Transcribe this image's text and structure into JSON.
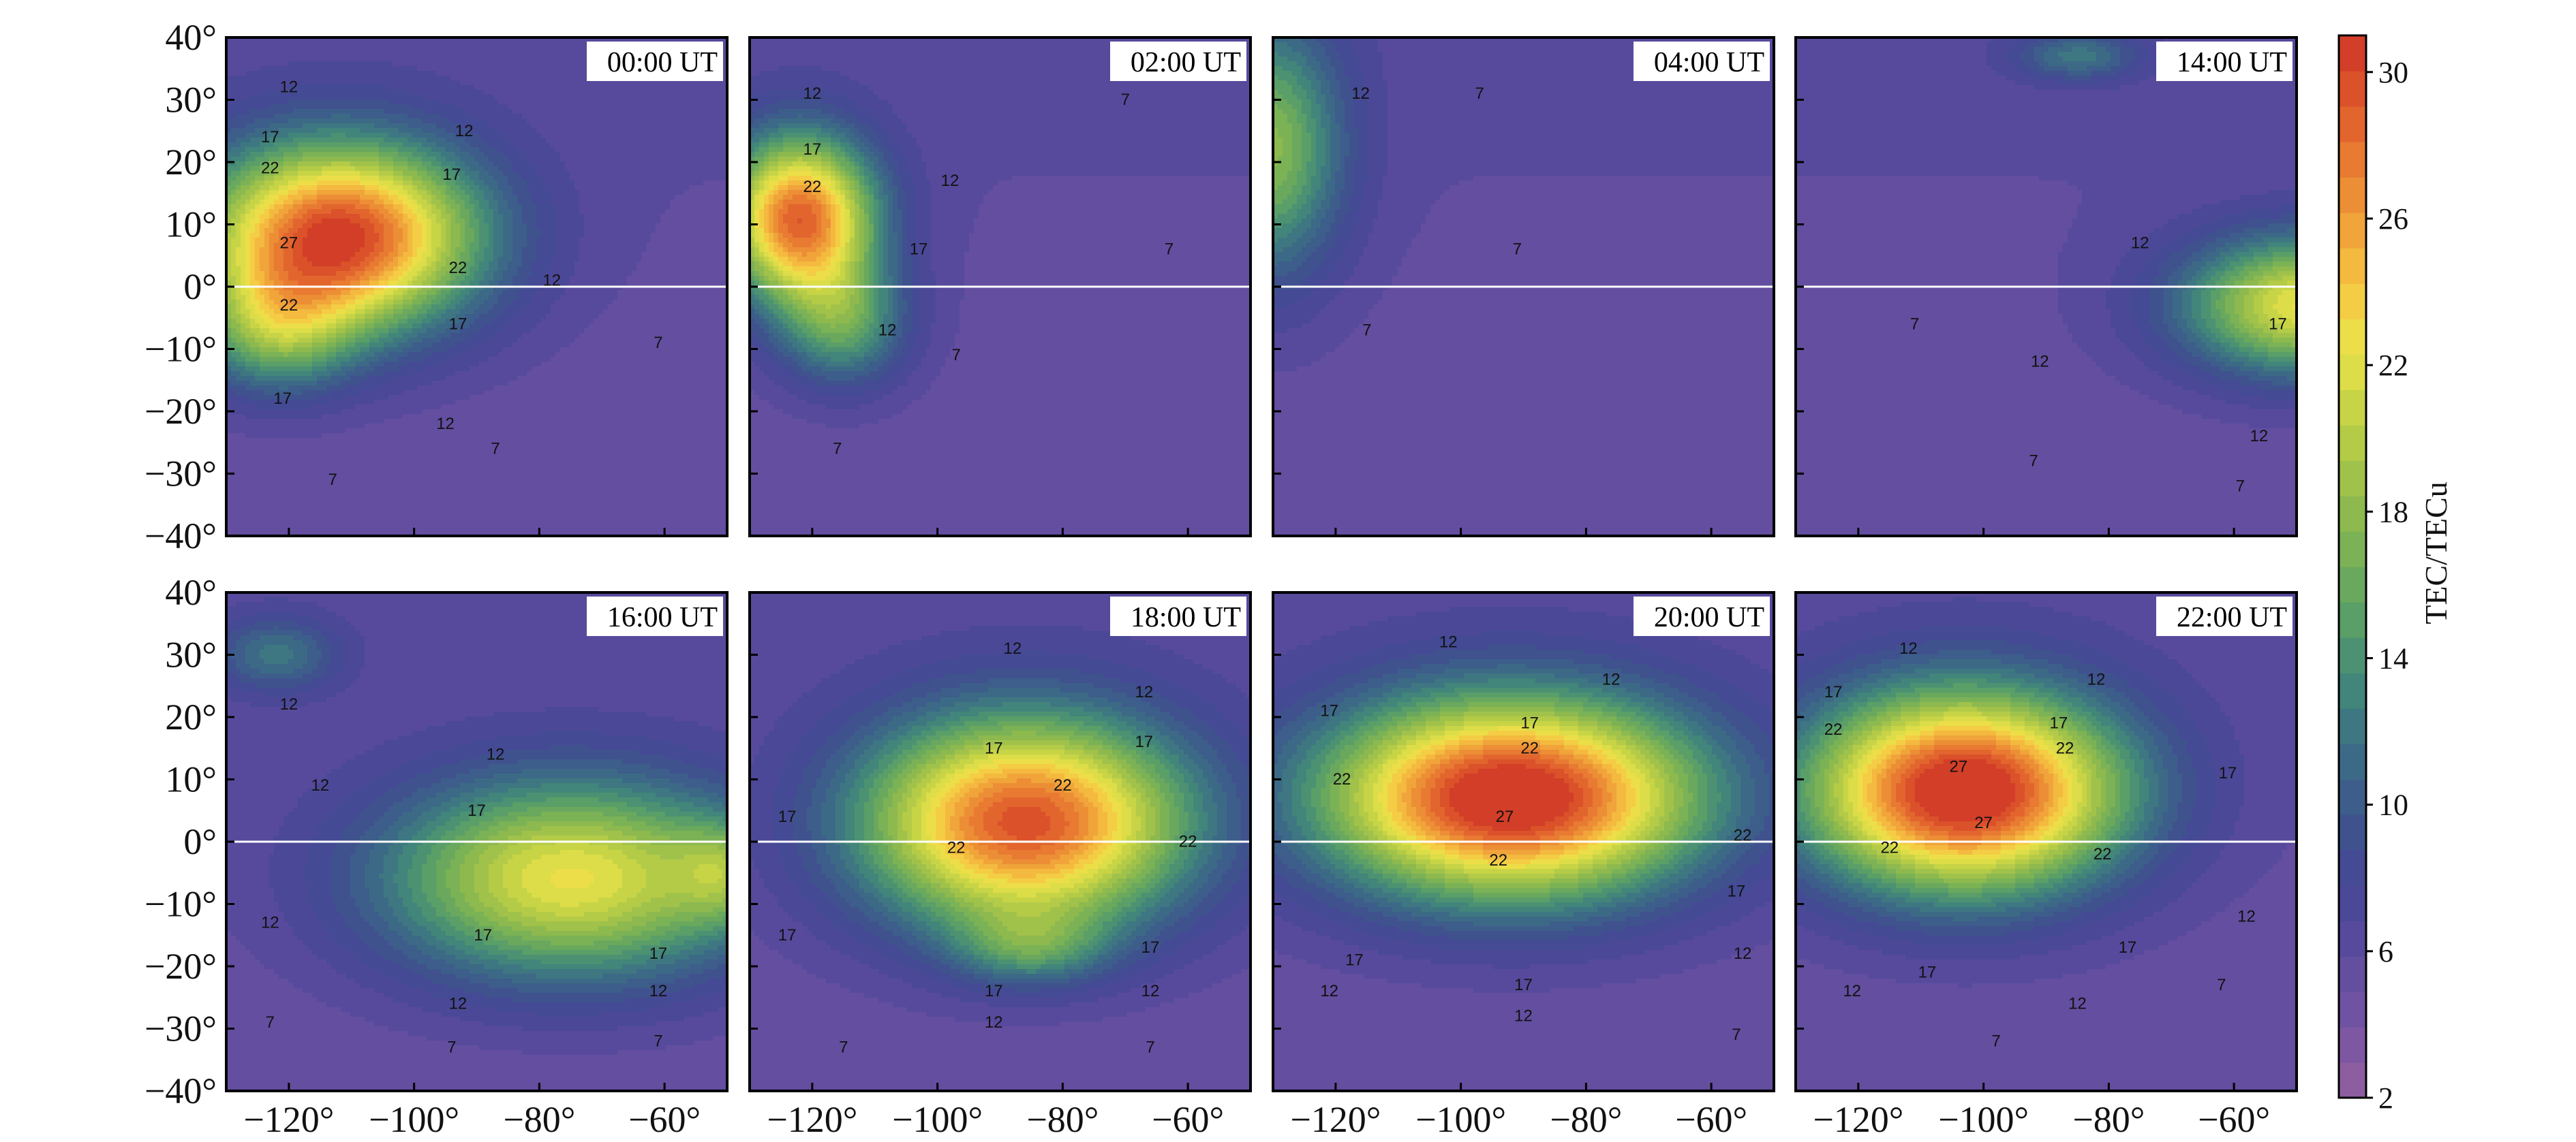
{
  "chart_data": {
    "type": "heatmap",
    "subtype": "filled-contour-map",
    "layout": "2x4 panels",
    "xaxis": {
      "ticks": [
        -120,
        -100,
        -80,
        -60
      ],
      "tick_labels": [
        "−120°",
        "−100°",
        "−80°",
        "−60°"
      ],
      "range": [
        -130,
        -50
      ]
    },
    "yaxis": {
      "ticks": [
        40,
        30,
        20,
        10,
        0,
        -10,
        -20,
        -30,
        -40
      ],
      "tick_labels": [
        "40°",
        "30°",
        "20°",
        "10°",
        "0°",
        "−10°",
        "−20°",
        "−30°",
        "−40°"
      ],
      "range": [
        -40,
        40
      ]
    },
    "equator_line": true,
    "colorbar": {
      "title": "TEC/TECu",
      "range": [
        2,
        31
      ],
      "ticks": [
        30,
        26,
        22,
        18,
        14,
        10,
        6,
        2
      ],
      "tick_labels": [
        "30",
        "26",
        "22",
        "18",
        "14",
        "10",
        "6",
        "2"
      ],
      "colors": [
        "#8c5ea0",
        "#7e57a2",
        "#7052a2",
        "#634ea0",
        "#574a9c",
        "#4c4898",
        "#444a94",
        "#3f528e",
        "#3d5d8a",
        "#3c6a86",
        "#3e7781",
        "#42857a",
        "#4c9272",
        "#5a9e68",
        "#6aa85e",
        "#7bb256",
        "#8db94f",
        "#a0c24b",
        "#b4cb48",
        "#c7d446",
        "#dcdd48",
        "#ecde48",
        "#f4cd45",
        "#f4b93f",
        "#f0a43a",
        "#ec8e35",
        "#e87a32",
        "#e2652e",
        "#da512a",
        "#d23e27"
      ]
    },
    "panels": [
      {
        "label": "00:00 UT",
        "blobs": [
          {
            "lon": -112,
            "lat": 8,
            "amp": 25,
            "sx": 22,
            "sy": 15
          },
          {
            "lon": -122,
            "lat": -7,
            "amp": 9,
            "sx": 12,
            "sy": 10
          }
        ],
        "contour_labels": [
          {
            "text": "12",
            "lon": -120,
            "lat": 32
          },
          {
            "text": "17",
            "lon": -123,
            "lat": 24
          },
          {
            "text": "22",
            "lon": -123,
            "lat": 19
          },
          {
            "text": "27",
            "lon": -120,
            "lat": 7
          },
          {
            "text": "22",
            "lon": -120,
            "lat": -3
          },
          {
            "text": "17",
            "lon": -121,
            "lat": -18
          },
          {
            "text": "12",
            "lon": -92,
            "lat": 25
          },
          {
            "text": "17",
            "lon": -94,
            "lat": 18
          },
          {
            "text": "22",
            "lon": -93,
            "lat": 3
          },
          {
            "text": "12",
            "lon": -78,
            "lat": 1
          },
          {
            "text": "17",
            "lon": -93,
            "lat": -6
          },
          {
            "text": "12",
            "lon": -95,
            "lat": -22
          },
          {
            "text": "7",
            "lon": -61,
            "lat": -9
          },
          {
            "text": "7",
            "lon": -87,
            "lat": -26
          },
          {
            "text": "7",
            "lon": -113,
            "lat": -31
          }
        ]
      },
      {
        "label": "02:00 UT",
        "blobs": [
          {
            "lon": -122,
            "lat": 11,
            "amp": 23,
            "sx": 12,
            "sy": 13
          },
          {
            "lon": -115,
            "lat": -6,
            "amp": 9,
            "sx": 10,
            "sy": 10
          }
        ],
        "contour_labels": [
          {
            "text": "12",
            "lon": -120,
            "lat": 31
          },
          {
            "text": "17",
            "lon": -120,
            "lat": 22
          },
          {
            "text": "22",
            "lon": -120,
            "lat": 16
          },
          {
            "text": "12",
            "lon": -98,
            "lat": 17
          },
          {
            "text": "17",
            "lon": -103,
            "lat": 6
          },
          {
            "text": "12",
            "lon": -108,
            "lat": -7
          },
          {
            "text": "7",
            "lon": -70,
            "lat": 30
          },
          {
            "text": "7",
            "lon": -63,
            "lat": 6
          },
          {
            "text": "7",
            "lon": -97,
            "lat": -11
          },
          {
            "text": "7",
            "lon": -116,
            "lat": -26
          }
        ]
      },
      {
        "label": "04:00 UT",
        "blobs": [
          {
            "lon": -131,
            "lat": 22,
            "amp": 12,
            "sx": 12,
            "sy": 20
          }
        ],
        "contour_labels": [
          {
            "text": "12",
            "lon": -116,
            "lat": 31
          },
          {
            "text": "7",
            "lon": -97,
            "lat": 31
          },
          {
            "text": "7",
            "lon": -91,
            "lat": 6
          },
          {
            "text": "7",
            "lon": -115,
            "lat": -7
          }
        ]
      },
      {
        "label": "14:00 UT",
        "blobs": [
          {
            "lon": -48,
            "lat": -3,
            "amp": 17,
            "sx": 20,
            "sy": 11
          },
          {
            "lon": -85,
            "lat": 37,
            "amp": 6,
            "sx": 10,
            "sy": 4
          }
        ],
        "contour_labels": [
          {
            "text": "12",
            "lon": -75,
            "lat": 7
          },
          {
            "text": "7",
            "lon": -111,
            "lat": -6
          },
          {
            "text": "12",
            "lon": -91,
            "lat": -12
          },
          {
            "text": "17",
            "lon": -53,
            "lat": -6
          },
          {
            "text": "12",
            "lon": -56,
            "lat": -24
          },
          {
            "text": "7",
            "lon": -92,
            "lat": -28
          },
          {
            "text": "7",
            "lon": -59,
            "lat": -32
          }
        ]
      },
      {
        "label": "16:00 UT",
        "blobs": [
          {
            "lon": -75,
            "lat": -6,
            "amp": 17,
            "sx": 30,
            "sy": 16
          },
          {
            "lon": -50,
            "lat": -5,
            "amp": 6,
            "sx": 8,
            "sy": 8
          },
          {
            "lon": -122,
            "lat": 30,
            "amp": 6,
            "sx": 10,
            "sy": 6
          }
        ],
        "contour_labels": [
          {
            "text": "12",
            "lon": -120,
            "lat": 22
          },
          {
            "text": "12",
            "lon": -87,
            "lat": 14
          },
          {
            "text": "12",
            "lon": -115,
            "lat": 9
          },
          {
            "text": "17",
            "lon": -90,
            "lat": 5
          },
          {
            "text": "12",
            "lon": -123,
            "lat": -13
          },
          {
            "text": "17",
            "lon": -89,
            "lat": -15
          },
          {
            "text": "17",
            "lon": -61,
            "lat": -18
          },
          {
            "text": "12",
            "lon": -61,
            "lat": -24
          },
          {
            "text": "12",
            "lon": -93,
            "lat": -26
          },
          {
            "text": "7",
            "lon": -123,
            "lat": -29
          },
          {
            "text": "7",
            "lon": -94,
            "lat": -33
          },
          {
            "text": "7",
            "lon": -61,
            "lat": -32
          }
        ]
      },
      {
        "label": "18:00 UT",
        "blobs": [
          {
            "lon": -86,
            "lat": 3,
            "amp": 24,
            "sx": 26,
            "sy": 17
          },
          {
            "lon": -85,
            "lat": -17,
            "amp": 6,
            "sx": 12,
            "sy": 6
          }
        ],
        "contour_labels": [
          {
            "text": "12",
            "lon": -88,
            "lat": 31
          },
          {
            "text": "12",
            "lon": -67,
            "lat": 24
          },
          {
            "text": "17",
            "lon": -91,
            "lat": 15
          },
          {
            "text": "17",
            "lon": -67,
            "lat": 16
          },
          {
            "text": "17",
            "lon": -124,
            "lat": 4
          },
          {
            "text": "22",
            "lon": -80,
            "lat": 9
          },
          {
            "text": "22",
            "lon": -97,
            "lat": -1
          },
          {
            "text": "22",
            "lon": -60,
            "lat": 0
          },
          {
            "text": "17",
            "lon": -124,
            "lat": -15
          },
          {
            "text": "17",
            "lon": -66,
            "lat": -17
          },
          {
            "text": "17",
            "lon": -91,
            "lat": -24
          },
          {
            "text": "12",
            "lon": -66,
            "lat": -24
          },
          {
            "text": "12",
            "lon": -91,
            "lat": -29
          },
          {
            "text": "7",
            "lon": -115,
            "lat": -33
          },
          {
            "text": "7",
            "lon": -66,
            "lat": -33
          }
        ]
      },
      {
        "label": "20:00 UT",
        "blobs": [
          {
            "lon": -92,
            "lat": 7,
            "amp": 27,
            "sx": 30,
            "sy": 16
          }
        ],
        "contour_labels": [
          {
            "text": "12",
            "lon": -102,
            "lat": 32
          },
          {
            "text": "12",
            "lon": -76,
            "lat": 26
          },
          {
            "text": "17",
            "lon": -121,
            "lat": 21
          },
          {
            "text": "17",
            "lon": -89,
            "lat": 19
          },
          {
            "text": "22",
            "lon": -89,
            "lat": 15
          },
          {
            "text": "22",
            "lon": -119,
            "lat": 10
          },
          {
            "text": "27",
            "lon": -93,
            "lat": 4
          },
          {
            "text": "22",
            "lon": -55,
            "lat": 1
          },
          {
            "text": "22",
            "lon": -94,
            "lat": -3
          },
          {
            "text": "17",
            "lon": -56,
            "lat": -8
          },
          {
            "text": "12",
            "lon": -55,
            "lat": -18
          },
          {
            "text": "17",
            "lon": -117,
            "lat": -19
          },
          {
            "text": "12",
            "lon": -121,
            "lat": -24
          },
          {
            "text": "17",
            "lon": -90,
            "lat": -23
          },
          {
            "text": "12",
            "lon": -90,
            "lat": -28
          },
          {
            "text": "7",
            "lon": -56,
            "lat": -31
          }
        ]
      },
      {
        "label": "22:00 UT",
        "blobs": [
          {
            "lon": -103,
            "lat": 8,
            "amp": 27,
            "sx": 25,
            "sy": 16
          }
        ],
        "contour_labels": [
          {
            "text": "12",
            "lon": -112,
            "lat": 31
          },
          {
            "text": "12",
            "lon": -82,
            "lat": 26
          },
          {
            "text": "17",
            "lon": -124,
            "lat": 24
          },
          {
            "text": "17",
            "lon": -88,
            "lat": 19
          },
          {
            "text": "22",
            "lon": -124,
            "lat": 18
          },
          {
            "text": "22",
            "lon": -87,
            "lat": 15
          },
          {
            "text": "27",
            "lon": -104,
            "lat": 12
          },
          {
            "text": "27",
            "lon": -100,
            "lat": 3
          },
          {
            "text": "17",
            "lon": -61,
            "lat": 11
          },
          {
            "text": "22",
            "lon": -115,
            "lat": -1
          },
          {
            "text": "22",
            "lon": -81,
            "lat": -2
          },
          {
            "text": "12",
            "lon": -58,
            "lat": -12
          },
          {
            "text": "17",
            "lon": -77,
            "lat": -17
          },
          {
            "text": "17",
            "lon": -109,
            "lat": -21
          },
          {
            "text": "12",
            "lon": -121,
            "lat": -24
          },
          {
            "text": "12",
            "lon": -85,
            "lat": -26
          },
          {
            "text": "7",
            "lon": -62,
            "lat": -23
          },
          {
            "text": "7",
            "lon": -98,
            "lat": -32
          }
        ]
      }
    ]
  }
}
